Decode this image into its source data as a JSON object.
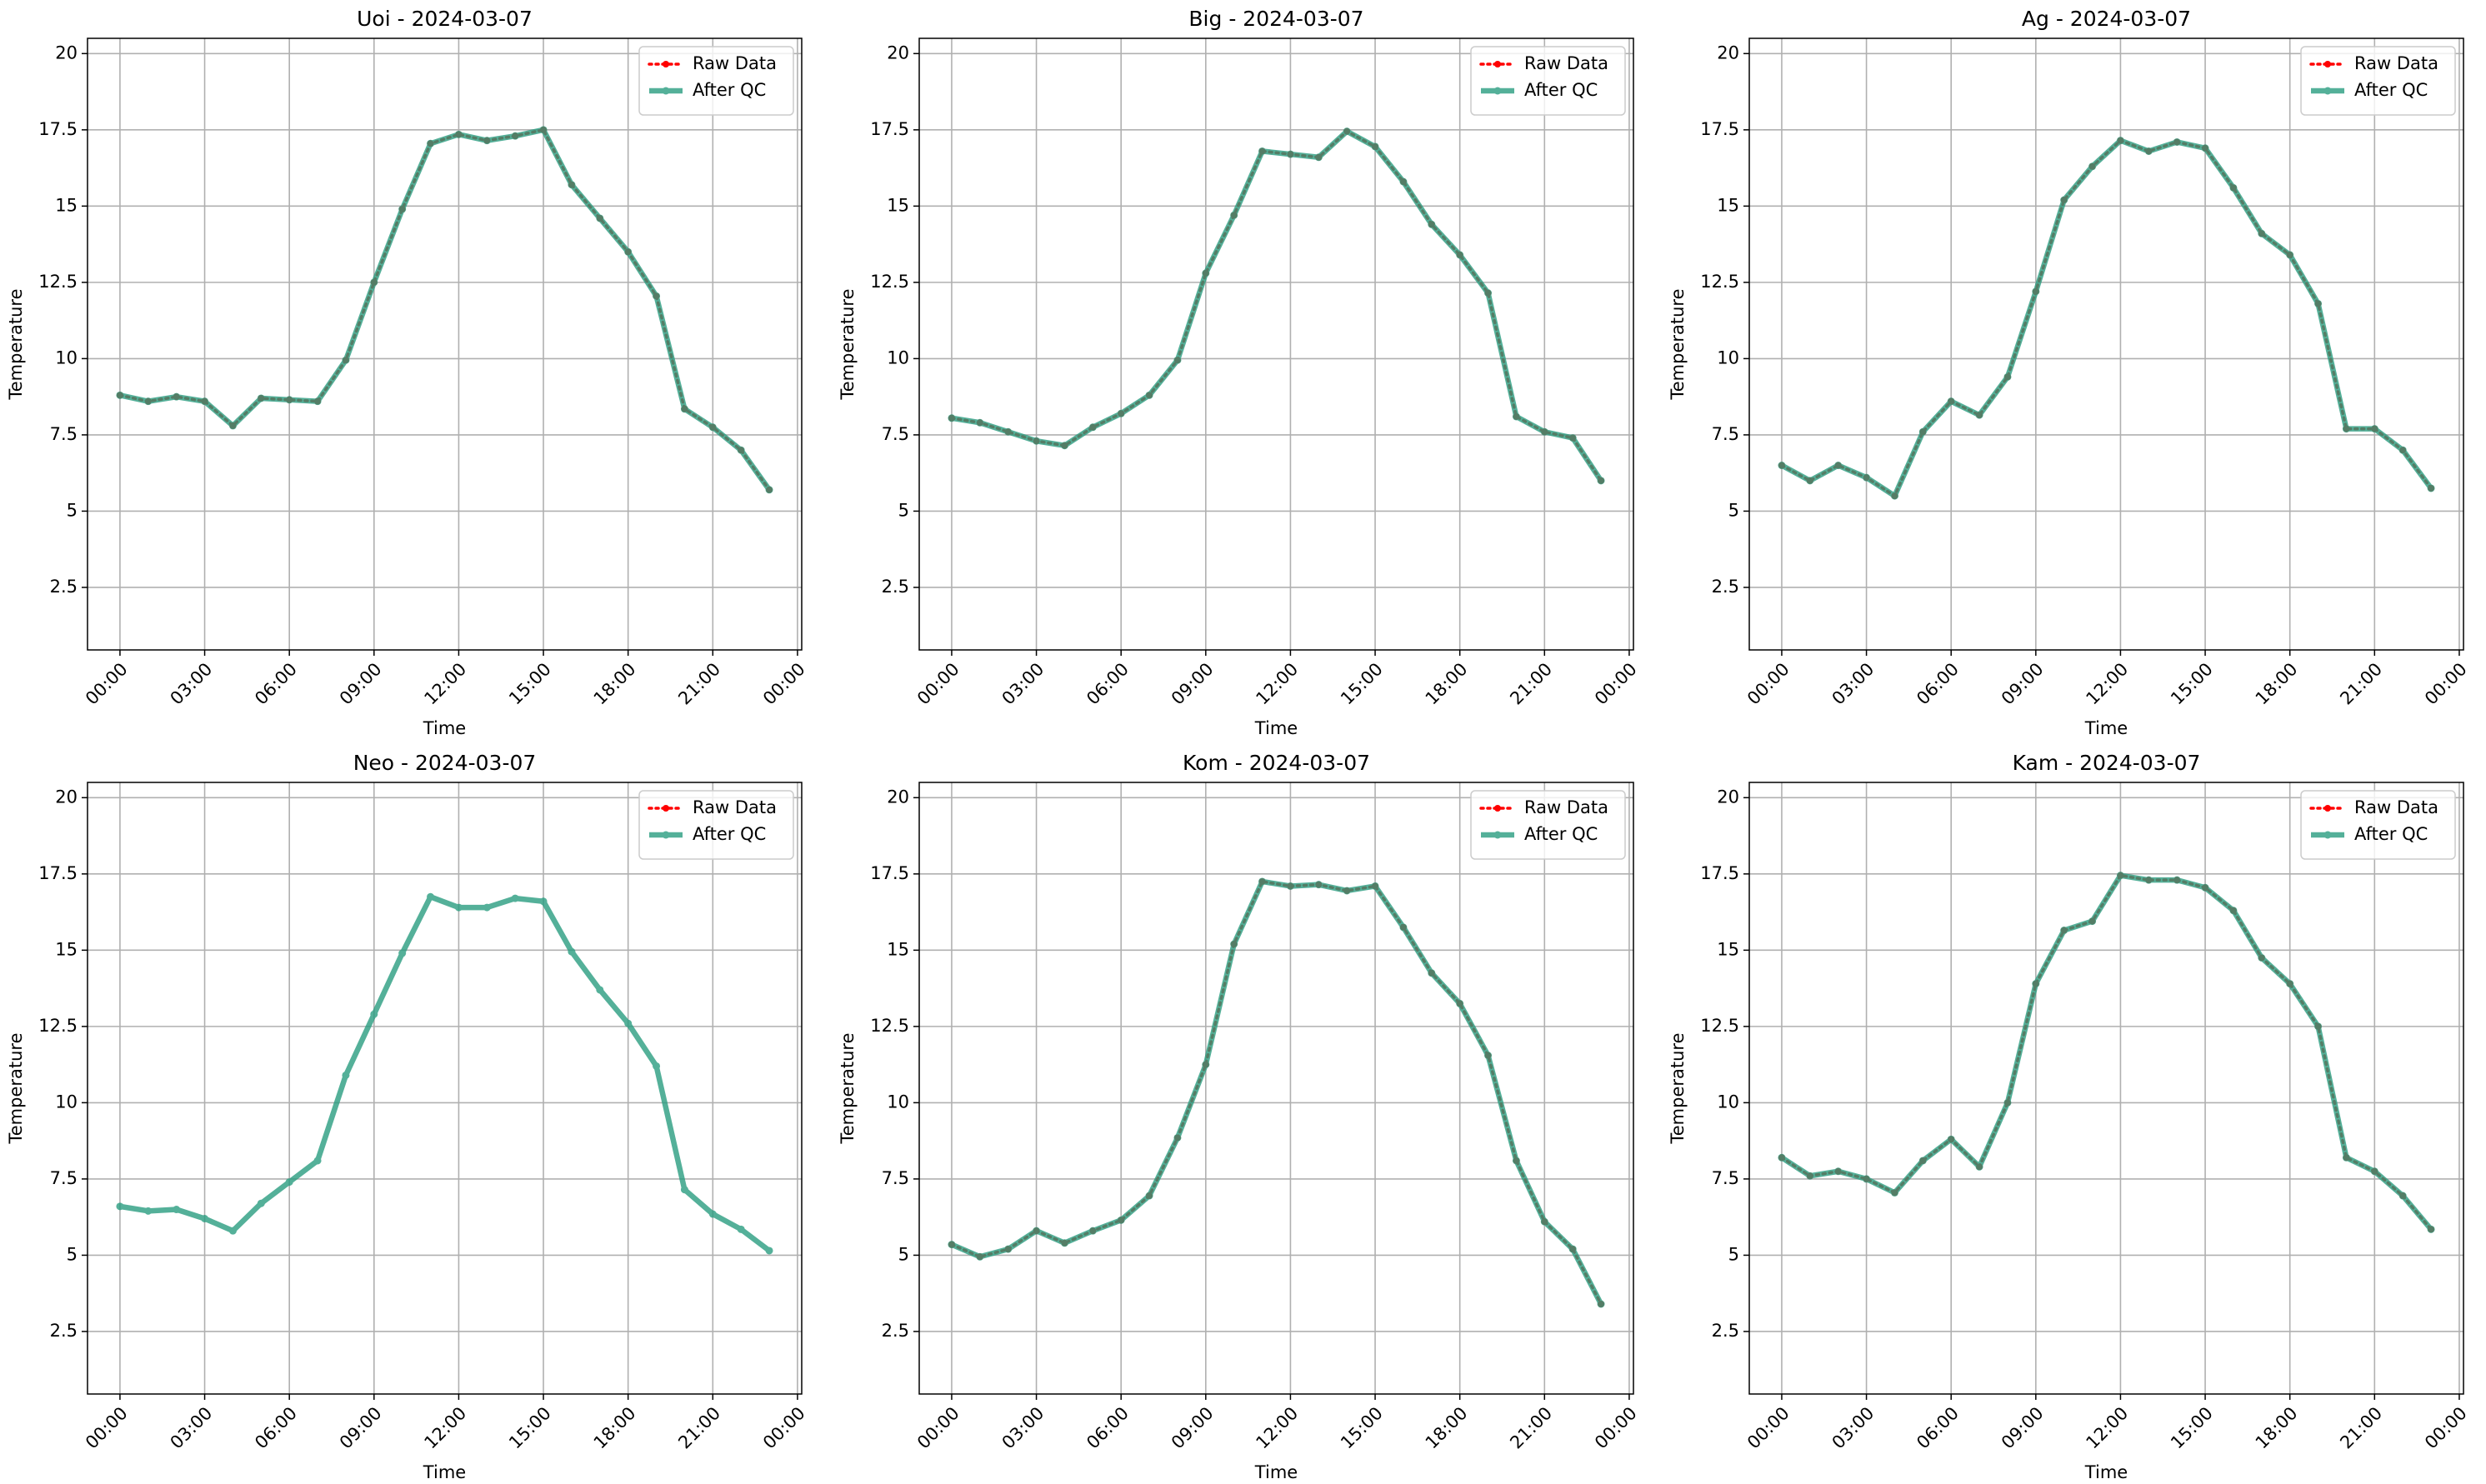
{
  "chart_data": [
    {
      "type": "line",
      "title": "Uoi - 2024-03-07",
      "xlabel": "Time",
      "ylabel": "Temperature",
      "x": [
        0,
        1,
        2,
        3,
        4,
        5,
        6,
        7,
        8,
        9,
        10,
        11,
        12,
        13,
        14,
        15,
        16,
        17,
        18,
        19,
        20,
        21,
        22,
        23
      ],
      "series": [
        {
          "name": "Raw Data",
          "color": "#ff0000",
          "values": [
            8.8,
            8.6,
            8.75,
            8.6,
            7.8,
            8.7,
            8.65,
            8.6,
            9.95,
            12.5,
            14.9,
            17.05,
            17.35,
            17.15,
            17.3,
            17.5,
            15.7,
            14.6,
            13.5,
            12.05,
            8.35,
            7.75,
            7.0,
            5.7
          ]
        },
        {
          "name": "After QC",
          "color": "#2a9d80",
          "values": [
            8.8,
            8.6,
            8.75,
            8.6,
            7.8,
            8.7,
            8.65,
            8.6,
            9.95,
            12.5,
            14.9,
            17.05,
            17.35,
            17.15,
            17.3,
            17.5,
            15.7,
            14.6,
            13.5,
            12.05,
            8.35,
            7.75,
            7.0,
            5.7
          ]
        }
      ],
      "xlim": [
        -1.15,
        24.15
      ],
      "xticks": [
        {
          "value": 0,
          "label": "00:00"
        },
        {
          "value": 3,
          "label": "03:00"
        },
        {
          "value": 6,
          "label": "06:00"
        },
        {
          "value": 9,
          "label": "09:00"
        },
        {
          "value": 12,
          "label": "12:00"
        },
        {
          "value": 15,
          "label": "15:00"
        },
        {
          "value": 18,
          "label": "18:00"
        },
        {
          "value": 21,
          "label": "21:00"
        },
        {
          "value": 24,
          "label": "00:00"
        }
      ],
      "ylim": [
        0.45,
        20.5
      ],
      "yticks": [
        2.5,
        5.0,
        7.5,
        10.0,
        12.5,
        15.0,
        17.5,
        20.0
      ],
      "grid": true,
      "legend": "upper right"
    },
    {
      "type": "line",
      "title": "Big - 2024-03-07",
      "xlabel": "Time",
      "ylabel": "Temperature",
      "x": [
        0,
        1,
        2,
        3,
        4,
        5,
        6,
        7,
        8,
        9,
        10,
        11,
        12,
        13,
        14,
        15,
        16,
        17,
        18,
        19,
        20,
        21,
        22,
        23
      ],
      "series": [
        {
          "name": "Raw Data",
          "color": "#ff0000",
          "values": [
            8.05,
            7.9,
            7.6,
            7.3,
            7.15,
            7.75,
            8.2,
            8.8,
            9.95,
            12.8,
            14.7,
            16.8,
            16.7,
            16.6,
            17.45,
            16.95,
            15.8,
            14.4,
            13.4,
            12.15,
            8.1,
            7.6,
            7.4,
            6.0
          ]
        },
        {
          "name": "After QC",
          "color": "#2a9d80",
          "values": [
            8.05,
            7.9,
            7.6,
            7.3,
            7.15,
            7.75,
            8.2,
            8.8,
            9.95,
            12.8,
            14.7,
            16.8,
            16.7,
            16.6,
            17.45,
            16.95,
            15.8,
            14.4,
            13.4,
            12.15,
            8.1,
            7.6,
            7.4,
            6.0
          ]
        }
      ],
      "xlim": [
        -1.15,
        24.15
      ],
      "xticks": [
        {
          "value": 0,
          "label": "00:00"
        },
        {
          "value": 3,
          "label": "03:00"
        },
        {
          "value": 6,
          "label": "06:00"
        },
        {
          "value": 9,
          "label": "09:00"
        },
        {
          "value": 12,
          "label": "12:00"
        },
        {
          "value": 15,
          "label": "15:00"
        },
        {
          "value": 18,
          "label": "18:00"
        },
        {
          "value": 21,
          "label": "21:00"
        },
        {
          "value": 24,
          "label": "00:00"
        }
      ],
      "ylim": [
        0.45,
        20.5
      ],
      "yticks": [
        2.5,
        5.0,
        7.5,
        10.0,
        12.5,
        15.0,
        17.5,
        20.0
      ],
      "grid": true,
      "legend": "upper right"
    },
    {
      "type": "line",
      "title": "Ag - 2024-03-07",
      "xlabel": "Time",
      "ylabel": "Temperature",
      "x": [
        0,
        1,
        2,
        3,
        4,
        5,
        6,
        7,
        8,
        9,
        10,
        11,
        12,
        13,
        14,
        15,
        16,
        17,
        18,
        19,
        20,
        21,
        22,
        23
      ],
      "series": [
        {
          "name": "Raw Data",
          "color": "#ff0000",
          "values": [
            6.5,
            6.0,
            6.5,
            6.1,
            5.5,
            7.6,
            8.6,
            8.15,
            9.4,
            12.2,
            15.2,
            16.3,
            17.15,
            16.8,
            17.1,
            16.9,
            15.6,
            14.1,
            13.4,
            11.8,
            7.7,
            7.7,
            7.0,
            5.75
          ]
        },
        {
          "name": "After QC",
          "color": "#2a9d80",
          "values": [
            6.5,
            6.0,
            6.5,
            6.1,
            5.5,
            7.6,
            8.6,
            8.15,
            9.4,
            12.2,
            15.2,
            16.3,
            17.15,
            16.8,
            17.1,
            16.9,
            15.6,
            14.1,
            13.4,
            11.8,
            7.7,
            7.7,
            7.0,
            5.75
          ]
        }
      ],
      "xlim": [
        -1.15,
        24.15
      ],
      "xticks": [
        {
          "value": 0,
          "label": "00:00"
        },
        {
          "value": 3,
          "label": "03:00"
        },
        {
          "value": 6,
          "label": "06:00"
        },
        {
          "value": 9,
          "label": "09:00"
        },
        {
          "value": 12,
          "label": "12:00"
        },
        {
          "value": 15,
          "label": "15:00"
        },
        {
          "value": 18,
          "label": "18:00"
        },
        {
          "value": 21,
          "label": "21:00"
        },
        {
          "value": 24,
          "label": "00:00"
        }
      ],
      "ylim": [
        0.45,
        20.5
      ],
      "yticks": [
        2.5,
        5.0,
        7.5,
        10.0,
        12.5,
        15.0,
        17.5,
        20.0
      ],
      "grid": true,
      "legend": "upper right"
    },
    {
      "type": "line",
      "title": "Neo - 2024-03-07",
      "xlabel": "Time",
      "ylabel": "Temperature",
      "x": [
        0,
        1,
        2,
        3,
        4,
        5,
        6,
        7,
        8,
        9,
        10,
        11,
        12,
        13,
        14,
        15,
        16,
        17,
        18,
        19,
        20,
        21,
        22,
        23
      ],
      "series": [
        {
          "name": "Raw Data",
          "color": "#ff0000",
          "values": [
            null,
            null,
            null,
            null,
            null,
            null,
            null,
            null,
            null,
            null,
            null,
            null,
            null,
            null,
            null,
            null,
            null,
            null,
            null,
            null,
            null,
            null,
            null,
            null
          ]
        },
        {
          "name": "After QC",
          "color": "#2a9d80",
          "values": [
            6.6,
            6.45,
            6.5,
            6.2,
            5.8,
            6.7,
            7.4,
            8.1,
            10.9,
            12.9,
            14.9,
            16.75,
            16.4,
            16.4,
            16.7,
            16.6,
            14.95,
            13.7,
            12.6,
            11.2,
            7.15,
            6.35,
            5.85,
            5.15
          ]
        }
      ],
      "xlim": [
        -1.15,
        24.15
      ],
      "xticks": [
        {
          "value": 0,
          "label": "00:00"
        },
        {
          "value": 3,
          "label": "03:00"
        },
        {
          "value": 6,
          "label": "06:00"
        },
        {
          "value": 9,
          "label": "09:00"
        },
        {
          "value": 12,
          "label": "12:00"
        },
        {
          "value": 15,
          "label": "15:00"
        },
        {
          "value": 18,
          "label": "18:00"
        },
        {
          "value": 21,
          "label": "21:00"
        },
        {
          "value": 24,
          "label": "00:00"
        }
      ],
      "ylim": [
        0.45,
        20.5
      ],
      "yticks": [
        2.5,
        5.0,
        7.5,
        10.0,
        12.5,
        15.0,
        17.5,
        20.0
      ],
      "grid": true,
      "legend": "upper right"
    },
    {
      "type": "line",
      "title": "Kom - 2024-03-07",
      "xlabel": "Time",
      "ylabel": "Temperature",
      "x": [
        0,
        1,
        2,
        3,
        4,
        5,
        6,
        7,
        8,
        9,
        10,
        11,
        12,
        13,
        14,
        15,
        16,
        17,
        18,
        19,
        20,
        21,
        22,
        23
      ],
      "series": [
        {
          "name": "Raw Data",
          "color": "#ff0000",
          "values": [
            5.35,
            4.95,
            5.2,
            5.8,
            5.4,
            5.8,
            6.15,
            6.95,
            8.85,
            11.25,
            15.2,
            17.25,
            17.1,
            17.15,
            16.95,
            17.1,
            15.75,
            14.25,
            13.25,
            11.55,
            8.1,
            6.1,
            5.2,
            3.4
          ]
        },
        {
          "name": "After QC",
          "color": "#2a9d80",
          "values": [
            5.35,
            4.95,
            5.2,
            5.8,
            5.4,
            5.8,
            6.15,
            6.95,
            8.85,
            11.25,
            15.2,
            17.25,
            17.1,
            17.15,
            16.95,
            17.1,
            15.75,
            14.25,
            13.25,
            11.55,
            8.1,
            6.1,
            5.2,
            3.4
          ]
        }
      ],
      "xlim": [
        -1.15,
        24.15
      ],
      "xticks": [
        {
          "value": 0,
          "label": "00:00"
        },
        {
          "value": 3,
          "label": "03:00"
        },
        {
          "value": 6,
          "label": "06:00"
        },
        {
          "value": 9,
          "label": "09:00"
        },
        {
          "value": 12,
          "label": "12:00"
        },
        {
          "value": 15,
          "label": "15:00"
        },
        {
          "value": 18,
          "label": "18:00"
        },
        {
          "value": 21,
          "label": "21:00"
        },
        {
          "value": 24,
          "label": "00:00"
        }
      ],
      "ylim": [
        0.45,
        20.5
      ],
      "yticks": [
        2.5,
        5.0,
        7.5,
        10.0,
        12.5,
        15.0,
        17.5,
        20.0
      ],
      "grid": true,
      "legend": "upper right"
    },
    {
      "type": "line",
      "title": "Kam - 2024-03-07",
      "xlabel": "Time",
      "ylabel": "Temperature",
      "x": [
        0,
        1,
        2,
        3,
        4,
        5,
        6,
        7,
        8,
        9,
        10,
        11,
        12,
        13,
        14,
        15,
        16,
        17,
        18,
        19,
        20,
        21,
        22,
        23
      ],
      "series": [
        {
          "name": "Raw Data",
          "color": "#ff0000",
          "values": [
            8.2,
            7.6,
            7.75,
            7.5,
            7.05,
            8.1,
            8.8,
            7.9,
            10.0,
            13.9,
            15.65,
            15.95,
            17.45,
            17.3,
            17.3,
            17.05,
            16.3,
            14.75,
            13.9,
            12.5,
            8.2,
            7.75,
            6.95,
            5.85
          ]
        },
        {
          "name": "After QC",
          "color": "#2a9d80",
          "values": [
            8.2,
            7.6,
            7.75,
            7.5,
            7.05,
            8.1,
            8.8,
            7.9,
            10.0,
            13.9,
            15.65,
            15.95,
            17.45,
            17.3,
            17.3,
            17.05,
            16.3,
            14.75,
            13.9,
            12.5,
            8.2,
            7.75,
            6.95,
            5.85
          ]
        }
      ],
      "xlim": [
        -1.15,
        24.15
      ],
      "xticks": [
        {
          "value": 0,
          "label": "00:00"
        },
        {
          "value": 3,
          "label": "03:00"
        },
        {
          "value": 6,
          "label": "06:00"
        },
        {
          "value": 9,
          "label": "09:00"
        },
        {
          "value": 12,
          "label": "12:00"
        },
        {
          "value": 15,
          "label": "15:00"
        },
        {
          "value": 18,
          "label": "18:00"
        },
        {
          "value": 21,
          "label": "21:00"
        },
        {
          "value": 24,
          "label": "00:00"
        }
      ],
      "ylim": [
        0.45,
        20.5
      ],
      "yticks": [
        2.5,
        5.0,
        7.5,
        10.0,
        12.5,
        15.0,
        17.5,
        20.0
      ],
      "grid": true,
      "legend": "upper right"
    }
  ]
}
